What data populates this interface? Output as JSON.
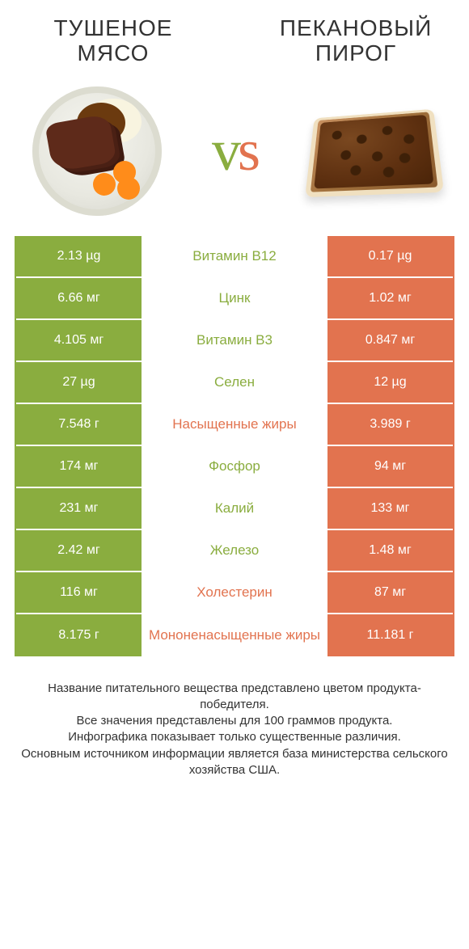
{
  "colors": {
    "left": "#8aad3f",
    "right": "#e2734f",
    "left_dim": "#a8c46a",
    "right_dim": "#eea088"
  },
  "left_title": "ТУШЕНОЕ МЯСО",
  "right_title": "ПЕКАНОВЫЙ ПИРОГ",
  "vs": {
    "v": "v",
    "s": "s"
  },
  "rows": [
    {
      "l": "2.13 µg",
      "name": "Витамин B12",
      "r": "0.17 µg",
      "win": "left"
    },
    {
      "l": "6.66 мг",
      "name": "Цинк",
      "r": "1.02 мг",
      "win": "left"
    },
    {
      "l": "4.105 мг",
      "name": "Витамин B3",
      "r": "0.847 мг",
      "win": "left"
    },
    {
      "l": "27 µg",
      "name": "Селен",
      "r": "12 µg",
      "win": "left"
    },
    {
      "l": "7.548 г",
      "name": "Насыщенные жиры",
      "r": "3.989 г",
      "win": "right"
    },
    {
      "l": "174 мг",
      "name": "Фосфор",
      "r": "94 мг",
      "win": "left"
    },
    {
      "l": "231 мг",
      "name": "Калий",
      "r": "133 мг",
      "win": "left"
    },
    {
      "l": "2.42 мг",
      "name": "Железо",
      "r": "1.48 мг",
      "win": "left"
    },
    {
      "l": "116 мг",
      "name": "Холестерин",
      "r": "87 мг",
      "win": "right"
    },
    {
      "l": "8.175 г",
      "name": "Мононенасыщенные жиры",
      "r": "11.181 г",
      "win": "right"
    }
  ],
  "footer": [
    "Название питательного вещества представлено цветом продукта-победителя.",
    "Все значения представлены для 100 граммов продукта.",
    "Инфографика показывает только существенные различия.",
    "Основным источником информации является база министерства сельского хозяйства США."
  ]
}
